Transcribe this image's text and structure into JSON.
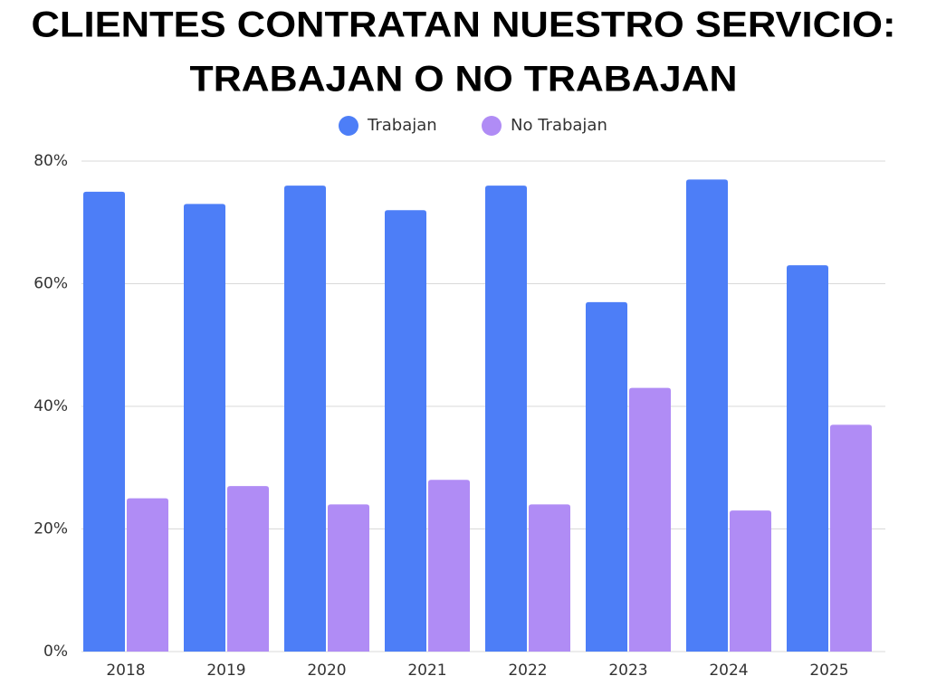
{
  "chart_data": {
    "type": "bar",
    "title": [
      "CLIENTES CONTRATAN NUESTRO SERVICIO:",
      "TRABAJAN O NO TRABAJAN"
    ],
    "categories": [
      "2018",
      "2019",
      "2020",
      "2021",
      "2022",
      "2023",
      "2024",
      "2025"
    ],
    "series": [
      {
        "name": "Trabajan",
        "color": "#4d7ef7",
        "values": [
          75,
          73,
          76,
          72,
          76,
          57,
          77,
          63
        ]
      },
      {
        "name": "No Trabajan",
        "color": "#b08cf5",
        "values": [
          25,
          27,
          24,
          28,
          24,
          43,
          23,
          37
        ]
      }
    ],
    "ylim": [
      0,
      80
    ],
    "yticks": [
      {
        "value": 0,
        "label": "0%"
      },
      {
        "value": 20,
        "label": "20%"
      },
      {
        "value": 40,
        "label": "40%"
      },
      {
        "value": 60,
        "label": "60%"
      },
      {
        "value": 80,
        "label": "80%"
      }
    ],
    "grid": true,
    "legend": "top"
  }
}
